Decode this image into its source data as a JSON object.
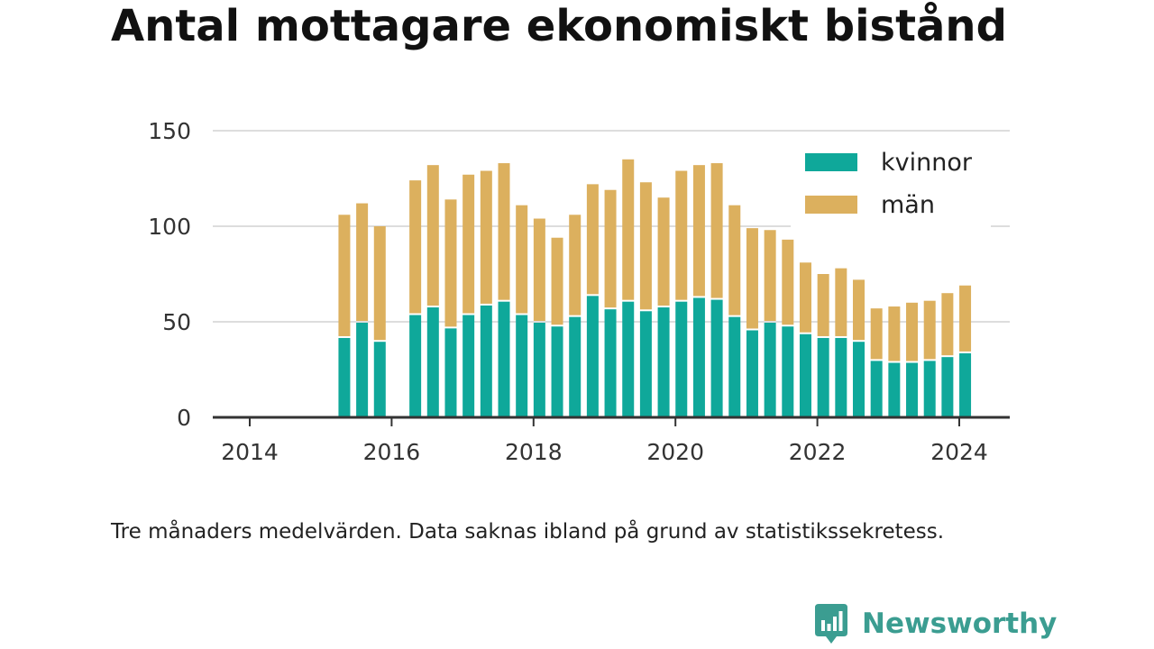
{
  "title": "Antal mottagare ekonomiskt bistånd",
  "caption": "Tre månaders medelvärden. Data saknas ibland på grund av statistikssekretess.",
  "brand": {
    "name": "Newsworthy",
    "icon": "newsworthy-logo-icon"
  },
  "colors": {
    "kvinnor": "#0fa89a",
    "man": "#dcb05e",
    "axis": "#333333",
    "grid": "#dddddd",
    "brand": "#3b9d91"
  },
  "chart_data": {
    "type": "bar",
    "stacked": true,
    "title": "Antal mottagare ekonomiskt bistånd",
    "xlabel": "",
    "ylabel": "",
    "x_axis": "date",
    "xlim": [
      "2013-01-01",
      "2024-07-01"
    ],
    "ylim": [
      0,
      150
    ],
    "yticks": [
      0,
      50,
      100,
      150
    ],
    "yticklabels": [
      "0",
      "50",
      "100",
      "150"
    ],
    "xticks": [
      "2014-01-01",
      "2016-01-01",
      "2018-01-01",
      "2020-01-01",
      "2022-01-01",
      "2024-01-01"
    ],
    "xticklabels": [
      "2014",
      "2016",
      "2018",
      "2020",
      "2022",
      "2024"
    ],
    "grid": true,
    "legend": "top-right",
    "x": [
      "2015-05-01",
      "2015-08-01",
      "2015-11-01",
      "2016-05-01",
      "2016-08-01",
      "2016-11-01",
      "2017-02-01",
      "2017-05-01",
      "2017-08-01",
      "2017-11-01",
      "2018-02-01",
      "2018-05-01",
      "2018-08-01",
      "2018-11-01",
      "2019-02-01",
      "2019-05-01",
      "2019-08-01",
      "2019-11-01",
      "2020-02-01",
      "2020-05-01",
      "2020-08-01",
      "2020-11-01",
      "2021-02-01",
      "2021-05-01",
      "2021-08-01",
      "2021-11-01",
      "2022-02-01",
      "2022-05-01",
      "2022-08-01",
      "2022-11-01",
      "2023-02-01",
      "2023-05-01",
      "2023-08-01",
      "2023-11-01",
      "2024-02-01"
    ],
    "series": [
      {
        "name": "kvinnor",
        "values": [
          42,
          50,
          40,
          54,
          58,
          47,
          54,
          59,
          61,
          54,
          50,
          48,
          53,
          64,
          57,
          61,
          56,
          58,
          61,
          63,
          62,
          53,
          46,
          50,
          48,
          44,
          42,
          42,
          40,
          30,
          29,
          29,
          30,
          32,
          34
        ]
      },
      {
        "name": "män",
        "values": [
          64,
          62,
          60,
          70,
          74,
          67,
          73,
          70,
          72,
          57,
          54,
          46,
          53,
          58,
          62,
          74,
          67,
          57,
          68,
          69,
          71,
          58,
          53,
          48,
          45,
          37,
          33,
          36,
          32,
          27,
          29,
          31,
          31,
          33,
          35
        ]
      }
    ]
  }
}
